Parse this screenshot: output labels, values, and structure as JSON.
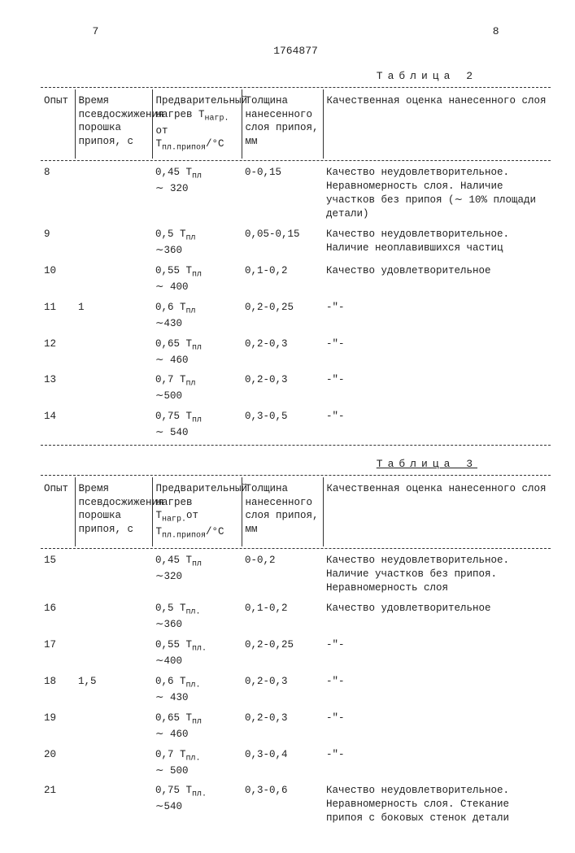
{
  "page_left": "7",
  "page_right": "8",
  "patent_number": "1764877",
  "tables": {
    "t2": {
      "caption": "Таблица 2",
      "headers": {
        "c1": "Опыт",
        "c2": "Время псевдосжижения порошка припоя, с",
        "c3a": "Предварительный",
        "c3b": "нагрев Т",
        "c3c": "нагр.",
        "c3d": " от",
        "c3e": "Т",
        "c3f": "пл.припоя",
        "c3g": "/°C",
        "c4": "Толщина нанесенного слоя припоя, мм",
        "c5": "Качественная оценка нанесенного слоя"
      },
      "rows": [
        {
          "n": "8",
          "t": "",
          "h1": "0,45 Т",
          "hsub": "пл",
          "h2": "∼ 320",
          "th": "0-0,15",
          "q": "Качество неудовлетворительное. Неравномерность слоя. Наличие участков без припоя (∼ 10% площади детали)"
        },
        {
          "n": "9",
          "t": "",
          "h1": "0,5 Т",
          "hsub": "пл",
          "h2": "∼360",
          "th": "0,05-0,15",
          "q": "Качество неудовлетворительное. Наличие неоплавившихся частиц"
        },
        {
          "n": "10",
          "t": "",
          "h1": "0,55 Т",
          "hsub": "пл",
          "h2": "∼ 400",
          "th": "0,1-0,2",
          "q": "Качество удовлетворительное"
        },
        {
          "n": "11",
          "t": "1",
          "h1": "0,6 Т",
          "hsub": "пл",
          "h2": "∼430",
          "th": "0,2-0,25",
          "q": "-\"-"
        },
        {
          "n": "12",
          "t": "",
          "h1": "0,65 Т",
          "hsub": "пл",
          "h2": "∼ 460",
          "th": "0,2-0,3",
          "q": "-\"-"
        },
        {
          "n": "13",
          "t": "",
          "h1": "0,7 Т",
          "hsub": "пл",
          "h2": "∼500",
          "th": "0,2-0,3",
          "q": "-\"-"
        },
        {
          "n": "14",
          "t": "",
          "h1": "0,75 Т",
          "hsub": "пл",
          "h2": "∼ 540",
          "th": "0,3-0,5",
          "q": "-\"-"
        }
      ]
    },
    "t3": {
      "caption": "Таблица 3",
      "headers": {
        "c1": "Опыт",
        "c2": "Время псевдосжижения порошка припоя, с",
        "c3a": "Предварительный",
        "c3b": "нагрев Т",
        "c3c": "нагр.",
        "c3d": "от",
        "c3e": "Т",
        "c3f": "пл.припоя",
        "c3g": "/°C",
        "c4": "Толщина нанесенного слоя припоя, мм",
        "c5": "Качественная оценка нанесенного слоя"
      },
      "rows": [
        {
          "n": "15",
          "t": "",
          "h1": "0,45 Т",
          "hsub": "пл",
          "h2": "∼320",
          "th": "0-0,2",
          "q": "Качество неудовлетворительное. Наличие участков без припоя. Неравномерность слоя"
        },
        {
          "n": "16",
          "t": "",
          "h1": "0,5 Т",
          "hsub": "пл.",
          "h2": "∼360",
          "th": "0,1-0,2",
          "q": "Качество удовлетворительное"
        },
        {
          "n": "17",
          "t": "",
          "h1": "0,55 Т",
          "hsub": "пл.",
          "h2": "∼400",
          "th": "0,2-0,25",
          "q": "-\"-"
        },
        {
          "n": "18",
          "t": "1,5",
          "h1": "0,6 Т",
          "hsub": "пл.",
          "h2": "∼ 430",
          "th": "0,2-0,3",
          "q": "-\"-"
        },
        {
          "n": "19",
          "t": "",
          "h1": "0,65 Т",
          "hsub": "пл",
          "h2": "∼ 460",
          "th": "0,2-0,3",
          "q": "-\"-"
        },
        {
          "n": "20",
          "t": "",
          "h1": "0,7 Т",
          "hsub": "пл.",
          "h2": "∼ 500",
          "th": "0,3-0,4",
          "q": "-\"-"
        },
        {
          "n": "21",
          "t": "",
          "h1": "0,75 Т",
          "hsub": "пл.",
          "h2": "∼540",
          "th": "0,3-0,6",
          "q": "Качество неудовлетворительное. Неравномерность слоя. Стекание припоя с боковых стенок детали"
        }
      ]
    }
  }
}
